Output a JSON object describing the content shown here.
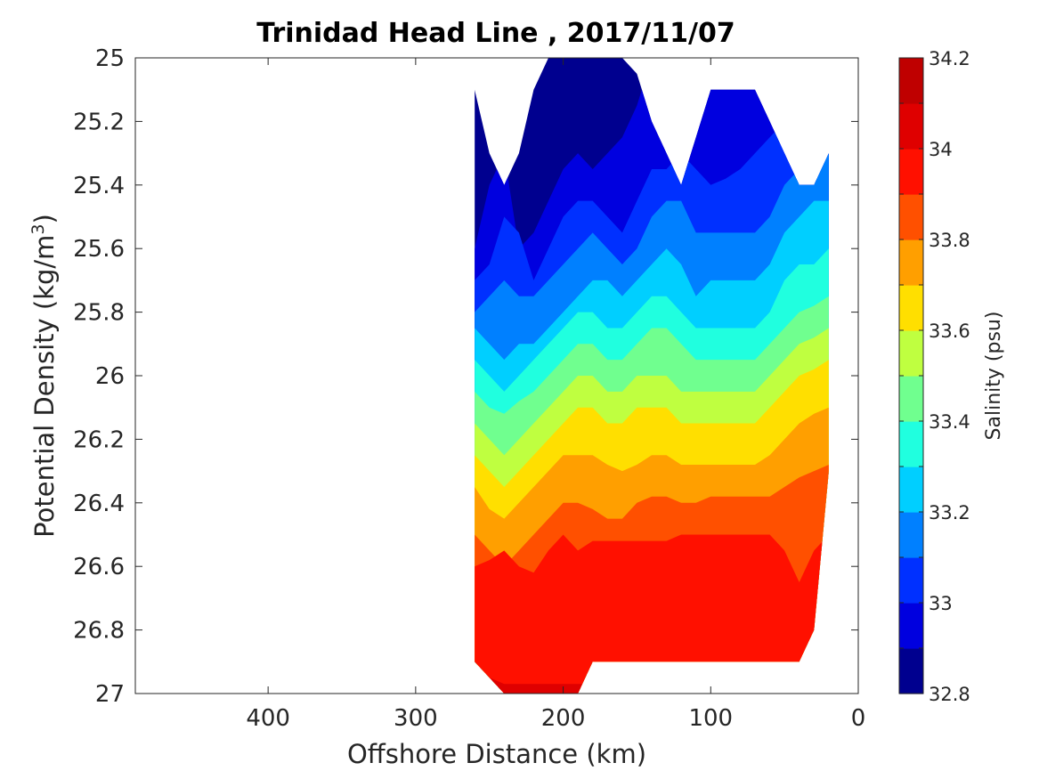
{
  "chart_data": {
    "type": "heatmap",
    "title": "Trinidad Head Line , 2017/11/07",
    "xlabel": "Offshore Distance (km)",
    "ylabel": "Potential Density (kg/m3)",
    "ylabel_parts": {
      "base": "Potential Density (kg/m",
      "sup": "3",
      "tail": ")"
    },
    "xlim": [
      490,
      0
    ],
    "x_reversed": true,
    "xticks": [
      400,
      300,
      200,
      100,
      0
    ],
    "ylim": [
      25,
      27
    ],
    "y_reversed": true,
    "yticks": [
      25,
      25.2,
      25.4,
      25.6,
      25.8,
      26,
      26.2,
      26.4,
      26.6,
      26.8,
      27
    ],
    "colorbar": {
      "label": "Salinity (psu)",
      "min": 32.8,
      "max": 34.2,
      "step": 0.1,
      "ticks": [
        32.8,
        33,
        33.2,
        33.4,
        33.6,
        33.8,
        34,
        34.2
      ],
      "colors": [
        "#00008f",
        "#0000df",
        "#0030ff",
        "#0080ff",
        "#00cfff",
        "#20ffdf",
        "#70ff8f",
        "#bfff40",
        "#ffdf00",
        "#ff9f00",
        "#ff5000",
        "#ff1000",
        "#df0000",
        "#bf0000"
      ]
    },
    "stations_x": [
      260,
      250,
      240,
      230,
      220,
      210,
      200,
      190,
      180,
      170,
      160,
      150,
      140,
      130,
      120,
      110,
      100,
      90,
      80,
      70,
      60,
      50,
      40,
      30,
      20
    ],
    "data_top_density": [
      25.1,
      25.3,
      25.4,
      25.3,
      25.1,
      25.0,
      25.0,
      25.0,
      25.0,
      25.0,
      25.0,
      25.05,
      25.2,
      25.3,
      25.4,
      25.25,
      25.1,
      25.1,
      25.1,
      25.1,
      25.2,
      25.3,
      25.4,
      25.4,
      25.3
    ],
    "data_bottom_density": [
      26.9,
      26.95,
      27.0,
      27.0,
      27.0,
      27.0,
      27.0,
      27.0,
      26.9,
      26.9,
      26.9,
      26.9,
      26.9,
      26.9,
      26.9,
      26.9,
      26.9,
      26.9,
      26.9,
      26.9,
      26.9,
      26.9,
      26.9,
      26.8,
      26.3
    ],
    "salinity_contour_depths": {
      "33.1": [
        25.6,
        25.4,
        25.3,
        25.6,
        25.55,
        25.45,
        25.35,
        25.3,
        25.35,
        25.3,
        25.25,
        25.15,
        25.0,
        25.0,
        25.0,
        25.0,
        25.0,
        25.0,
        25.0,
        25.0,
        25.0,
        25.0,
        25.0,
        25.0,
        25.0
      ],
      "33.2": [
        25.7,
        25.65,
        25.5,
        25.55,
        25.7,
        25.6,
        25.5,
        25.45,
        25.45,
        25.5,
        25.55,
        25.45,
        25.35,
        25.35,
        25.3,
        25.35,
        25.4,
        25.38,
        25.35,
        25.3,
        25.25,
        25.2,
        25.2,
        25.2,
        25.15
      ],
      "33.3": [
        25.8,
        25.75,
        25.7,
        25.75,
        25.75,
        25.7,
        25.65,
        25.6,
        25.55,
        25.6,
        25.65,
        25.6,
        25.5,
        25.45,
        25.45,
        25.55,
        25.55,
        25.55,
        25.55,
        25.55,
        25.5,
        25.4,
        25.35,
        25.3,
        25.3
      ],
      "33.4": [
        25.85,
        25.9,
        25.95,
        25.9,
        25.9,
        25.85,
        25.8,
        25.75,
        25.7,
        25.7,
        25.75,
        25.7,
        25.65,
        25.6,
        25.65,
        25.75,
        25.7,
        25.7,
        25.7,
        25.7,
        25.65,
        25.55,
        25.5,
        25.45,
        25.45
      ],
      "33.5": [
        25.95,
        26.0,
        26.05,
        26.0,
        25.95,
        25.9,
        25.85,
        25.8,
        25.8,
        25.85,
        25.85,
        25.8,
        25.75,
        25.75,
        25.8,
        25.85,
        25.85,
        25.85,
        25.85,
        25.85,
        25.8,
        25.7,
        25.65,
        25.65,
        25.6
      ],
      "33.6": [
        26.05,
        26.1,
        26.12,
        26.08,
        26.05,
        26.0,
        25.95,
        25.9,
        25.9,
        25.95,
        25.95,
        25.9,
        25.85,
        25.85,
        25.9,
        25.95,
        25.95,
        25.95,
        25.95,
        25.95,
        25.9,
        25.85,
        25.8,
        25.78,
        25.75
      ],
      "33.7": [
        26.15,
        26.2,
        26.25,
        26.2,
        26.15,
        26.1,
        26.05,
        26.0,
        26.0,
        26.05,
        26.05,
        26.0,
        26.0,
        26.0,
        26.05,
        26.05,
        26.05,
        26.05,
        26.05,
        26.05,
        26.0,
        25.95,
        25.9,
        25.88,
        25.85
      ],
      "33.8": [
        26.25,
        26.3,
        26.35,
        26.3,
        26.25,
        26.2,
        26.15,
        26.1,
        26.1,
        26.15,
        26.15,
        26.1,
        26.1,
        26.1,
        26.15,
        26.15,
        26.15,
        26.15,
        26.15,
        26.15,
        26.1,
        26.05,
        26.0,
        25.98,
        25.95
      ],
      "33.9": [
        26.35,
        26.42,
        26.45,
        26.4,
        26.35,
        26.3,
        26.25,
        26.25,
        26.25,
        26.28,
        26.3,
        26.28,
        26.25,
        26.25,
        26.28,
        26.28,
        26.28,
        26.28,
        26.28,
        26.28,
        26.25,
        26.2,
        26.15,
        26.12,
        26.1
      ],
      "34.0": [
        26.5,
        26.55,
        26.6,
        26.55,
        26.5,
        26.45,
        26.4,
        26.4,
        26.42,
        26.45,
        26.45,
        26.4,
        26.38,
        26.38,
        26.4,
        26.4,
        26.38,
        26.38,
        26.38,
        26.38,
        26.38,
        26.35,
        26.32,
        26.3,
        26.28
      ],
      "34.1": [
        26.6,
        26.58,
        26.55,
        26.6,
        26.62,
        26.55,
        26.5,
        26.55,
        26.52,
        26.52,
        26.52,
        26.52,
        26.52,
        26.52,
        26.5,
        26.5,
        26.5,
        26.5,
        26.5,
        26.5,
        26.5,
        26.55,
        26.65,
        26.55,
        26.5
      ],
      "34.2": [
        26.98,
        26.95,
        26.97,
        26.97,
        26.97,
        26.97,
        26.97,
        26.97,
        26.97,
        26.97,
        26.97,
        26.97,
        26.97,
        26.97,
        26.95,
        26.93,
        26.93,
        26.93,
        26.95,
        26.97,
        26.97,
        26.97,
        26.97,
        26.97,
        26.97
      ]
    }
  }
}
